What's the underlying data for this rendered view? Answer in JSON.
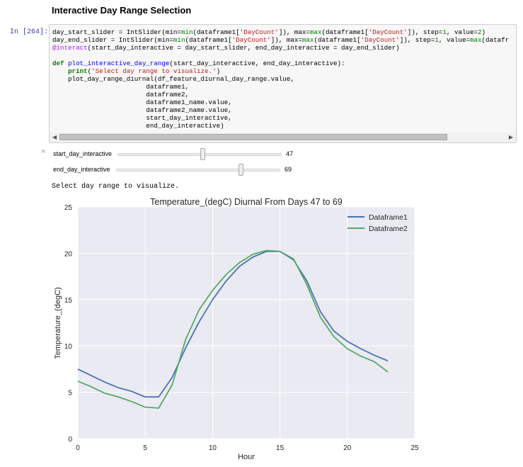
{
  "heading": "Interactive Day Range Selection",
  "cell": {
    "prompt": "In [264]:",
    "code_lines": [
      "day_start_slider = IntSlider(min=min(dataframe1['DayCount']), max=max(dataframe1['DayCount']), step=1, value=2)",
      "day_end_slider = IntSlider(min=min(dataframe1['DayCount']), max=max(dataframe1['DayCount']), step=1, value=max(datafr",
      "@interact(start_day_interactive = day_start_slider, end_day_interactive = day_end_slider)",
      "",
      "def plot_interactive_day_range(start_day_interactive, end_day_interactive):",
      "    print('Select day range to visualize.')",
      "    plot_day_range_diurnal(df_feature_diurnal_day_range.value,",
      "                        dataframe1,",
      "                        dataframe2,",
      "                        dataframe1_name.value,",
      "                        dataframe2_name.value,",
      "                        start_day_interactive,",
      "                        end_day_interactive)"
    ]
  },
  "widgets": {
    "close": "×",
    "start": {
      "label": "start_day_interactive",
      "value": "47",
      "position": 0.5
    },
    "end": {
      "label": "end_day_interactive",
      "value": "69",
      "position": 0.76
    }
  },
  "output_text": "Select day range to visualize.",
  "colors": {
    "dataframe1": "#4c72b0",
    "dataframe2": "#55a868",
    "plot_bg": "#eaeaf2"
  },
  "chart_data": {
    "type": "line",
    "title": "Temperature_(degC) Diurnal From Days 47 to 69",
    "xlabel": "Hour",
    "ylabel": "Temperature_(degC)",
    "xlim": [
      0,
      25
    ],
    "ylim": [
      0,
      25
    ],
    "xticks": [
      0,
      5,
      10,
      15,
      20,
      25
    ],
    "yticks": [
      0,
      5,
      10,
      15,
      20,
      25
    ],
    "legend_position": "top-right",
    "x": [
      0,
      1,
      2,
      3,
      4,
      5,
      6,
      7,
      8,
      9,
      10,
      11,
      12,
      13,
      14,
      15,
      16,
      17,
      18,
      19,
      20,
      21,
      22,
      23
    ],
    "series": [
      {
        "name": "Dataframe1",
        "values": [
          7.5,
          6.8,
          6.1,
          5.5,
          5.1,
          4.5,
          4.5,
          6.6,
          9.8,
          12.6,
          15.0,
          17.0,
          18.6,
          19.6,
          20.2,
          20.2,
          19.3,
          17.0,
          13.7,
          11.6,
          10.5,
          9.7,
          9.0,
          8.4
        ]
      },
      {
        "name": "Dataframe2",
        "values": [
          6.2,
          5.6,
          4.9,
          4.5,
          4.0,
          3.4,
          3.3,
          5.8,
          10.7,
          13.9,
          16.0,
          17.7,
          19.0,
          19.9,
          20.3,
          20.2,
          19.4,
          16.6,
          13.1,
          11.0,
          9.7,
          8.9,
          8.3,
          7.2
        ]
      }
    ]
  }
}
